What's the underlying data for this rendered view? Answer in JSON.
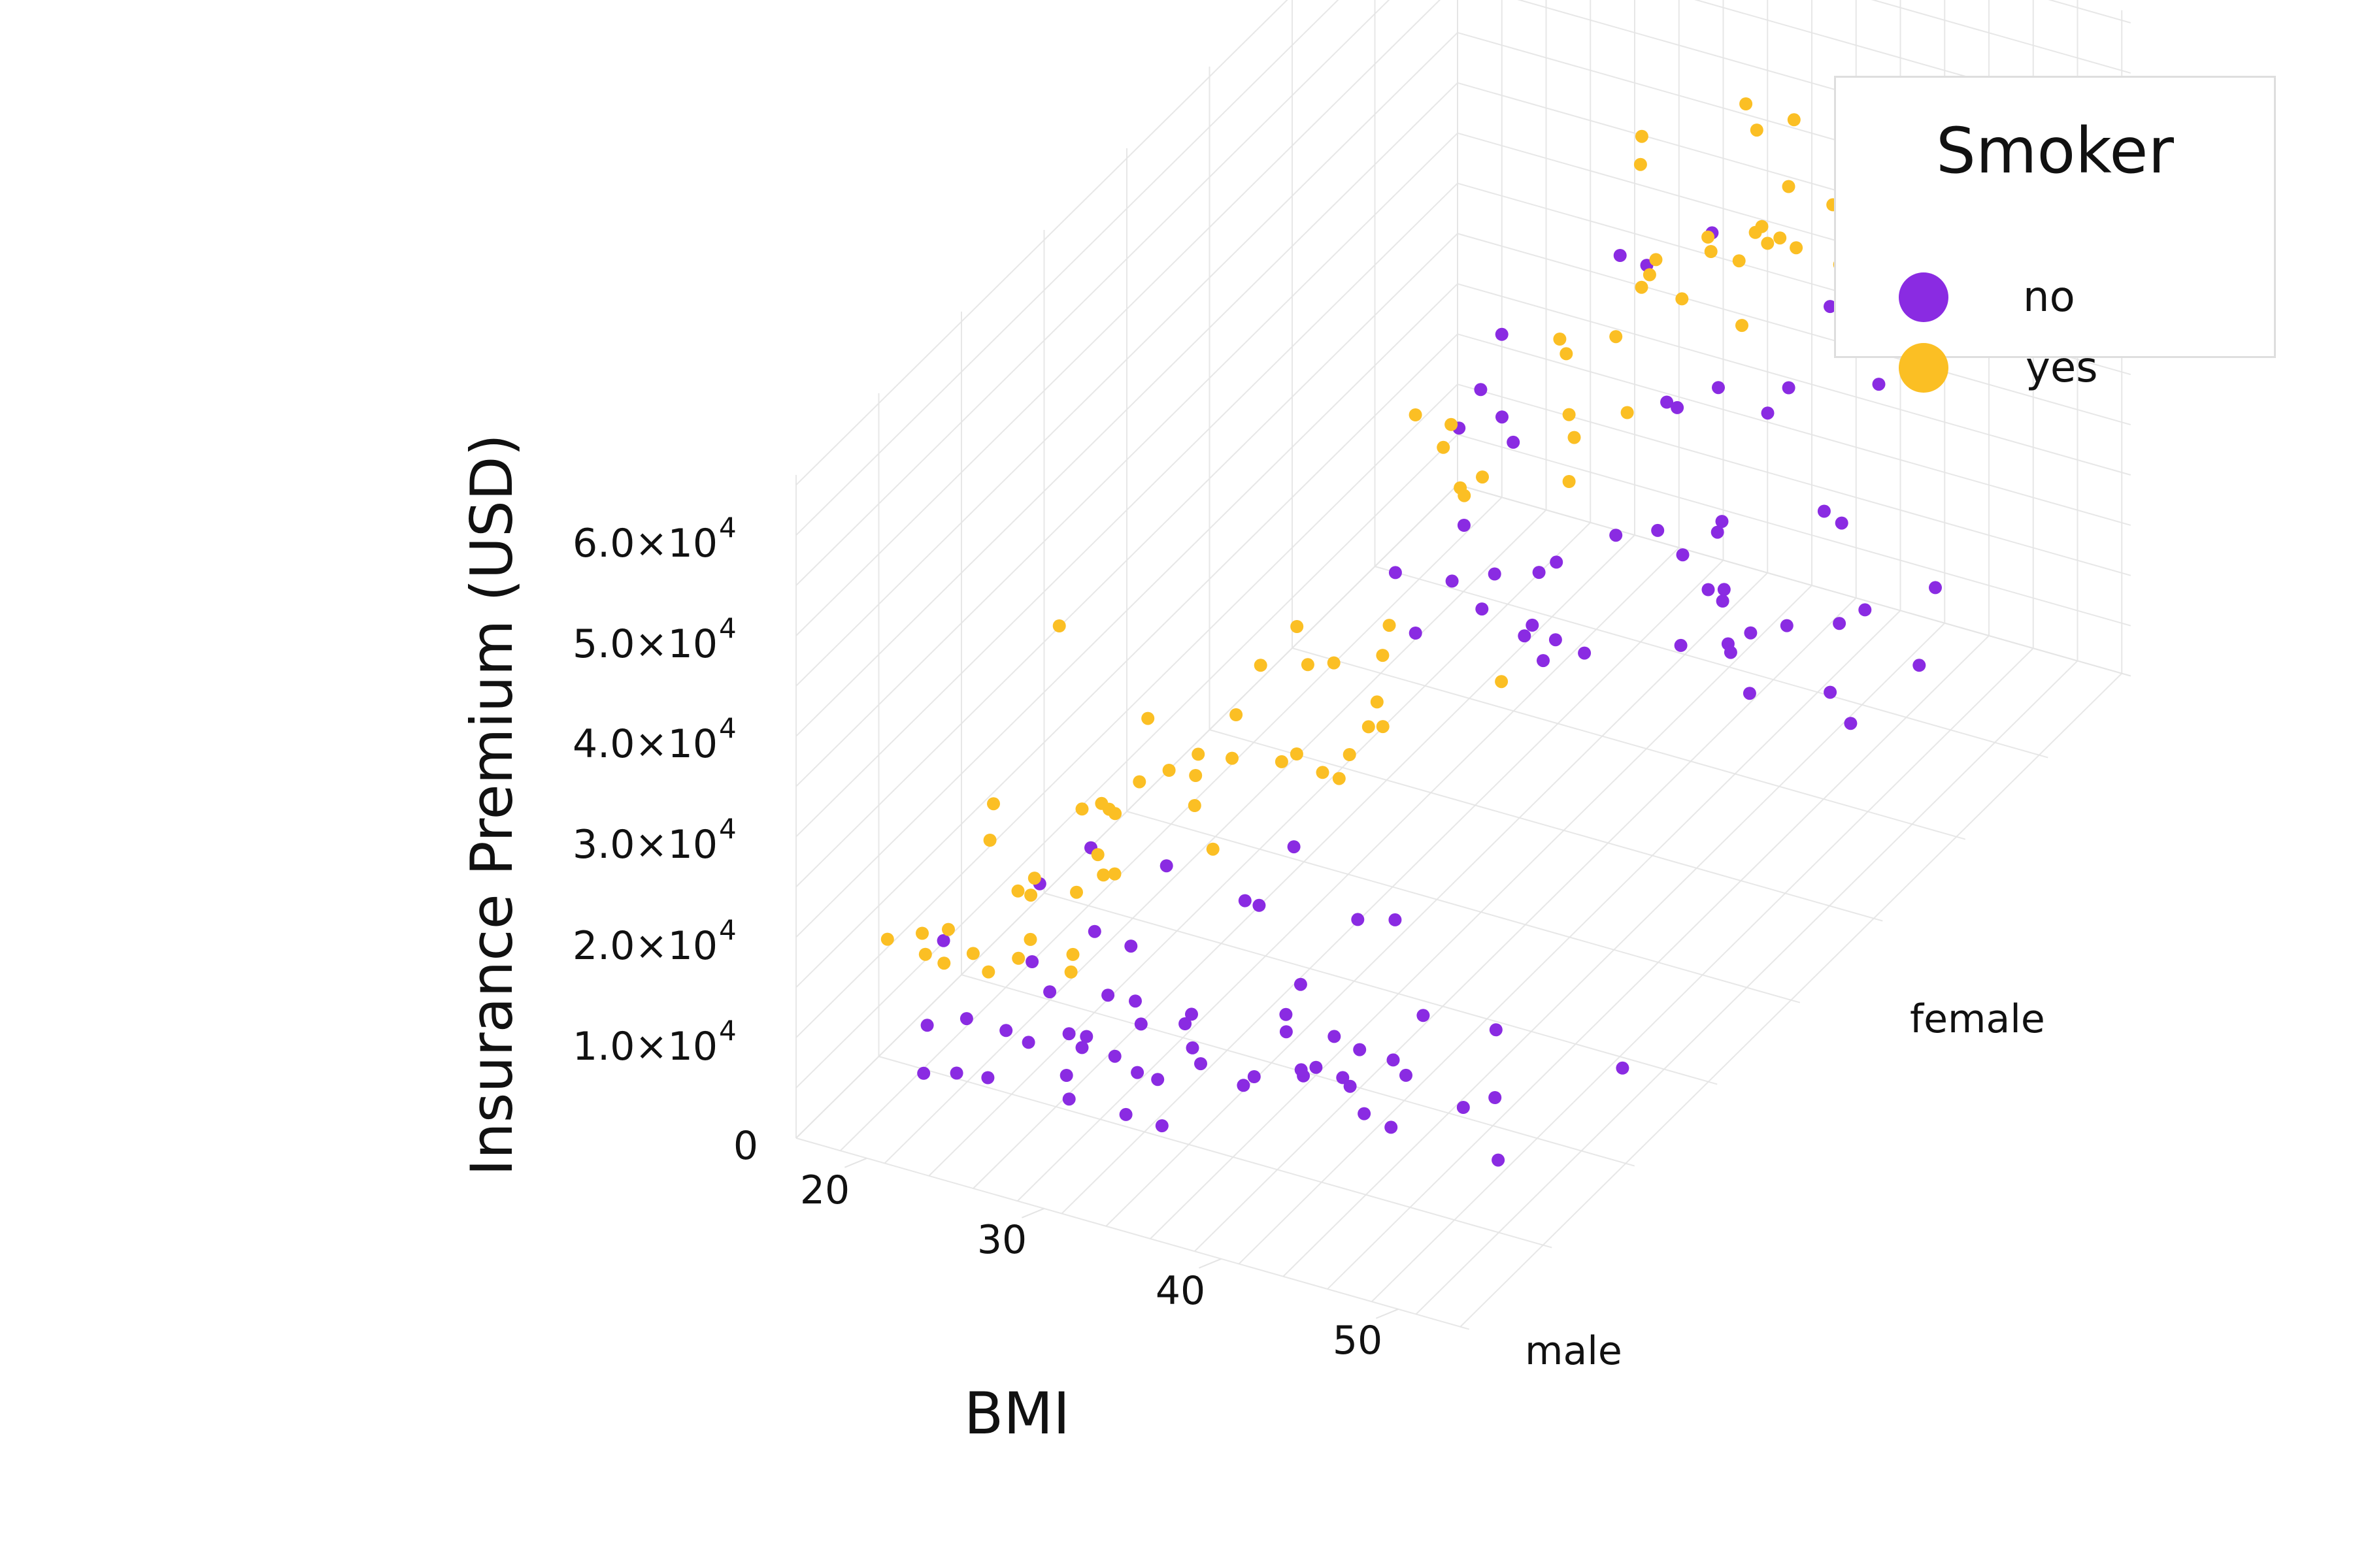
{
  "chart_data": {
    "type": "scatter3d",
    "xlabel": "BMI",
    "ylabel": "",
    "zlabel": "Insurance Premium (USD)",
    "x_ticks": [
      "20",
      "30",
      "40",
      "50"
    ],
    "x_tick_values": [
      20,
      30,
      40,
      50
    ],
    "y_categories": [
      "male",
      "female"
    ],
    "z_ticks": [
      "0",
      "1.0×10",
      "2.0×10",
      "3.0×10",
      "4.0×10",
      "5.0×10",
      "6.0×10"
    ],
    "z_tick_exponent": "4",
    "z_tick_values": [
      0,
      10000,
      20000,
      30000,
      40000,
      50000,
      60000
    ],
    "xlim": [
      16,
      54
    ],
    "zlim": [
      0,
      66000
    ],
    "grid": true,
    "legend": {
      "title": "Smoker",
      "position": "top-right"
    },
    "colors": {
      "no": "#8a2be2",
      "yes": "#fbbf24"
    },
    "series": [
      {
        "name": "no",
        "color": "#8a2be2",
        "points": [
          [
            17.5,
            "male",
            1700
          ],
          [
            19.2,
            "male",
            2300
          ],
          [
            20.1,
            "male",
            3100
          ],
          [
            21.0,
            "male",
            1900
          ],
          [
            22.3,
            "male",
            4200
          ],
          [
            23.1,
            "male",
            2600
          ],
          [
            24.0,
            "male",
            5100
          ],
          [
            24.8,
            "male",
            3300
          ],
          [
            25.5,
            "male",
            2200
          ],
          [
            26.1,
            "male",
            6200
          ],
          [
            26.9,
            "male",
            4100
          ],
          [
            27.4,
            "male",
            3000
          ],
          [
            28.0,
            "male",
            7200
          ],
          [
            28.6,
            "male",
            5300
          ],
          [
            29.3,
            "male",
            2800
          ],
          [
            30.0,
            "male",
            8200
          ],
          [
            30.7,
            "male",
            6100
          ],
          [
            31.2,
            "male",
            4000
          ],
          [
            31.9,
            "male",
            9100
          ],
          [
            32.5,
            "male",
            7000
          ],
          [
            33.1,
            "male",
            3600
          ],
          [
            33.8,
            "male",
            10200
          ],
          [
            34.4,
            "male",
            5400
          ],
          [
            35.0,
            "male",
            8300
          ],
          [
            35.7,
            "male",
            11800
          ],
          [
            36.3,
            "male",
            6600
          ],
          [
            37.0,
            "male",
            4300
          ],
          [
            37.6,
            "male",
            9700
          ],
          [
            38.3,
            "male",
            12400
          ],
          [
            39.0,
            "male",
            7500
          ],
          [
            39.6,
            "male",
            5200
          ],
          [
            40.3,
            "male",
            10800
          ],
          [
            41.0,
            "male",
            13200
          ],
          [
            41.8,
            "male",
            8400
          ],
          [
            42.5,
            "male",
            6000
          ],
          [
            43.3,
            "male",
            11900
          ],
          [
            44.1,
            "male",
            9300
          ],
          [
            45.0,
            "male",
            14100
          ],
          [
            46.2,
            "male",
            10300
          ],
          [
            47.5,
            "male",
            12600
          ],
          [
            48.8,
            "male",
            11000
          ],
          [
            50.6,
            "male",
            12900
          ],
          [
            52.8,
            "male",
            11300
          ],
          [
            53.5,
            "male",
            9800
          ],
          [
            20.3,
            "male",
            14800
          ],
          [
            23.8,
            "male",
            17400
          ],
          [
            27.1,
            "male",
            16100
          ],
          [
            30.9,
            "male",
            19600
          ],
          [
            34.6,
            "male",
            21200
          ],
          [
            36.9,
            "male",
            24500
          ],
          [
            39.8,
            "male",
            19900
          ],
          [
            42.7,
            "male",
            22700
          ],
          [
            26.5,
            "male",
            24900
          ],
          [
            33.0,
            "male",
            28800
          ],
          [
            38.5,
            "male",
            30500
          ],
          [
            44.9,
            "male",
            18200
          ],
          [
            29.8,
            "male",
            12500
          ],
          [
            25.0,
            "male",
            9800
          ],
          [
            22.0,
            "male",
            7800
          ],
          [
            18.6,
            "female",
            3200
          ],
          [
            20.4,
            "female",
            5200
          ],
          [
            21.9,
            "female",
            2600
          ],
          [
            23.2,
            "female",
            7100
          ],
          [
            24.5,
            "female",
            4300
          ],
          [
            25.6,
            "female",
            9000
          ],
          [
            26.4,
            "female",
            5900
          ],
          [
            27.2,
            "female",
            3500
          ],
          [
            28.1,
            "female",
            10400
          ],
          [
            28.9,
            "female",
            7600
          ],
          [
            29.7,
            "female",
            4800
          ],
          [
            30.4,
            "female",
            11700
          ],
          [
            31.1,
            "female",
            8800
          ],
          [
            31.8,
            "female",
            6200
          ],
          [
            32.6,
            "female",
            13000
          ],
          [
            33.4,
            "female",
            9900
          ],
          [
            34.1,
            "female",
            5500
          ],
          [
            34.9,
            "female",
            12100
          ],
          [
            35.6,
            "female",
            14300
          ],
          [
            36.4,
            "female",
            8100
          ],
          [
            37.2,
            "female",
            10900
          ],
          [
            38.0,
            "female",
            6900
          ],
          [
            38.9,
            "female",
            13400
          ],
          [
            39.7,
            "female",
            9600
          ],
          [
            40.6,
            "female",
            11600
          ],
          [
            41.5,
            "female",
            7700
          ],
          [
            42.4,
            "female",
            12800
          ],
          [
            43.4,
            "female",
            10100
          ],
          [
            44.5,
            "female",
            11400
          ],
          [
            45.7,
            "female",
            9300
          ],
          [
            47.0,
            "female",
            12300
          ],
          [
            48.6,
            "female",
            10700
          ],
          [
            50.1,
            "female",
            13100
          ],
          [
            22.6,
            "female",
            20300
          ],
          [
            26.0,
            "female",
            24800
          ],
          [
            29.0,
            "female",
            27900
          ],
          [
            32.2,
            "female",
            22400
          ],
          [
            35.2,
            "female",
            30700
          ],
          [
            38.1,
            "female",
            26200
          ],
          [
            41.2,
            "female",
            33600
          ],
          [
            44.0,
            "female",
            24100
          ],
          [
            47.3,
            "female",
            28600
          ],
          [
            30.3,
            "female",
            38900
          ],
          [
            34.8,
            "female",
            42200
          ],
          [
            39.4,
            "female",
            36500
          ],
          [
            27.6,
            "female",
            33200
          ],
          [
            36.1,
            "female",
            48300
          ],
          [
            24.2,
            "female",
            29000
          ],
          [
            42.8,
            "female",
            41200
          ],
          [
            45.8,
            "female",
            35400
          ],
          [
            49.0,
            "female",
            38000
          ]
        ]
      },
      {
        "name": "yes",
        "color": "#fbbf24",
        "points": [
          [
            17.2,
            "male",
            13500
          ],
          [
            18.5,
            "male",
            16200
          ],
          [
            19.8,
            "male",
            14100
          ],
          [
            20.6,
            "male",
            18300
          ],
          [
            21.5,
            "male",
            15200
          ],
          [
            22.2,
            "male",
            19700
          ],
          [
            23.0,
            "male",
            16800
          ],
          [
            23.7,
            "male",
            21900
          ],
          [
            24.5,
            "male",
            17600
          ],
          [
            25.2,
            "male",
            23400
          ],
          [
            25.9,
            "male",
            19100
          ],
          [
            26.6,
            "male",
            20500
          ],
          [
            27.3,
            "male",
            16400
          ],
          [
            28.1,
            "male",
            22100
          ],
          [
            28.8,
            "male",
            18200
          ],
          [
            21.1,
            "male",
            12400
          ],
          [
            22.9,
            "male",
            13100
          ],
          [
            24.1,
            "male",
            14200
          ],
          [
            19.0,
            "male",
            20600
          ],
          [
            26.2,
            "male",
            25300
          ],
          [
            30.2,
            "male",
            33800
          ],
          [
            31.0,
            "male",
            36900
          ],
          [
            31.8,
            "male",
            34100
          ],
          [
            32.5,
            "male",
            38700
          ],
          [
            33.3,
            "male",
            35600
          ],
          [
            34.0,
            "male",
            40300
          ],
          [
            34.8,
            "male",
            37100
          ],
          [
            35.5,
            "male",
            42600
          ],
          [
            36.2,
            "male",
            39200
          ],
          [
            37.0,
            "male",
            43900
          ],
          [
            37.8,
            "male",
            38600
          ],
          [
            38.6,
            "male",
            45100
          ],
          [
            39.5,
            "male",
            41700
          ],
          [
            40.3,
            "male",
            47200
          ],
          [
            41.2,
            "male",
            42800
          ],
          [
            42.1,
            "male",
            48900
          ],
          [
            43.0,
            "male",
            44300
          ],
          [
            44.2,
            "male",
            46500
          ],
          [
            45.5,
            "male",
            50800
          ],
          [
            47.0,
            "male",
            45600
          ],
          [
            33.0,
            "male",
            45300
          ],
          [
            30.6,
            "male",
            28700
          ],
          [
            35.9,
            "male",
            32400
          ],
          [
            29.5,
            "male",
            31200
          ],
          [
            28.4,
            "male",
            52900
          ],
          [
            39.0,
            "male",
            36200
          ],
          [
            36.7,
            "male",
            47800
          ],
          [
            41.6,
            "male",
            39800
          ],
          [
            38.0,
            "male",
            51000
          ],
          [
            20.0,
            "female",
            15600
          ],
          [
            22.1,
            "female",
            18800
          ],
          [
            24.0,
            "female",
            16200
          ],
          [
            25.8,
            "female",
            21400
          ],
          [
            27.0,
            "female",
            17900
          ],
          [
            28.3,
            "female",
            23600
          ],
          [
            29.4,
            "female",
            19400
          ],
          [
            26.5,
            "female",
            25900
          ],
          [
            23.3,
            "female",
            14700
          ],
          [
            21.0,
            "female",
            22300
          ],
          [
            30.8,
            "female",
            35200
          ],
          [
            31.7,
            "female",
            38100
          ],
          [
            32.6,
            "female",
            36400
          ],
          [
            33.5,
            "female",
            40800
          ],
          [
            34.4,
            "female",
            37700
          ],
          [
            35.3,
            "female",
            43300
          ],
          [
            36.2,
            "female",
            39900
          ],
          [
            37.1,
            "female",
            45600
          ],
          [
            38.0,
            "female",
            42200
          ],
          [
            39.0,
            "female",
            47400
          ],
          [
            40.0,
            "female",
            44100
          ],
          [
            41.0,
            "female",
            49600
          ],
          [
            42.0,
            "female",
            46200
          ],
          [
            43.1,
            "female",
            51100
          ],
          [
            44.3,
            "female",
            47800
          ],
          [
            45.6,
            "female",
            52900
          ],
          [
            47.0,
            "female",
            49300
          ],
          [
            48.5,
            "female",
            54100
          ],
          [
            50.0,
            "female",
            50600
          ],
          [
            51.5,
            "female",
            55300
          ],
          [
            33.8,
            "female",
            53800
          ],
          [
            36.8,
            "female",
            56200
          ],
          [
            40.6,
            "female",
            58400
          ],
          [
            44.8,
            "female",
            61700
          ],
          [
            48.0,
            "female",
            60300
          ],
          [
            52.8,
            "female",
            57800
          ],
          [
            30.2,
            "female",
            48400
          ],
          [
            27.8,
            "female",
            30900
          ],
          [
            35.0,
            "female",
            33100
          ],
          [
            38.8,
            "female",
            57000
          ],
          [
            42.5,
            "female",
            55200
          ],
          [
            46.3,
            "female",
            58900
          ],
          [
            49.7,
            "female",
            52400
          ],
          [
            53.5,
            "female",
            56700
          ]
        ]
      }
    ]
  }
}
